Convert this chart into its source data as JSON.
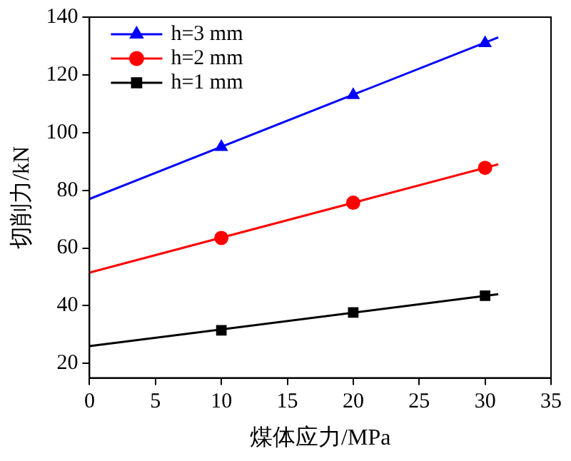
{
  "chart_data": {
    "type": "scatter",
    "xlabel": "煤体应力/MPa",
    "ylabel": "切削力/kN",
    "xlim": [
      0,
      35
    ],
    "xticks": [
      0,
      5,
      10,
      15,
      20,
      25,
      30,
      35
    ],
    "ylim": [
      15,
      140
    ],
    "yticks": [
      20,
      40,
      60,
      80,
      100,
      120,
      140
    ],
    "legend": "top left",
    "grid": false,
    "series": [
      {
        "name": "h=3 mm",
        "type": "scatter",
        "marker": "triangle",
        "color": "#0000ff",
        "x": [
          10,
          20,
          30
        ],
        "values": [
          95,
          113,
          131
        ]
      },
      {
        "name": "h=2 mm",
        "type": "scatter",
        "marker": "circle",
        "color": "#ff0000",
        "x": [
          10,
          20,
          30
        ],
        "values": [
          63.5,
          75.7,
          87.8
        ]
      },
      {
        "name": "h=1 mm",
        "type": "scatter",
        "marker": "square",
        "color": "#000000",
        "x": [
          10,
          20,
          30
        ],
        "values": [
          31.5,
          37.7,
          43.5
        ]
      },
      {
        "type": "line",
        "color": "#0000ff",
        "x": [
          0,
          31
        ],
        "values": [
          77,
          133
        ]
      },
      {
        "type": "line",
        "color": "#ff0000",
        "x": [
          0,
          31
        ],
        "values": [
          51.5,
          89
        ]
      },
      {
        "type": "line",
        "color": "#000000",
        "x": [
          0,
          31
        ],
        "values": [
          26,
          44
        ]
      }
    ]
  }
}
